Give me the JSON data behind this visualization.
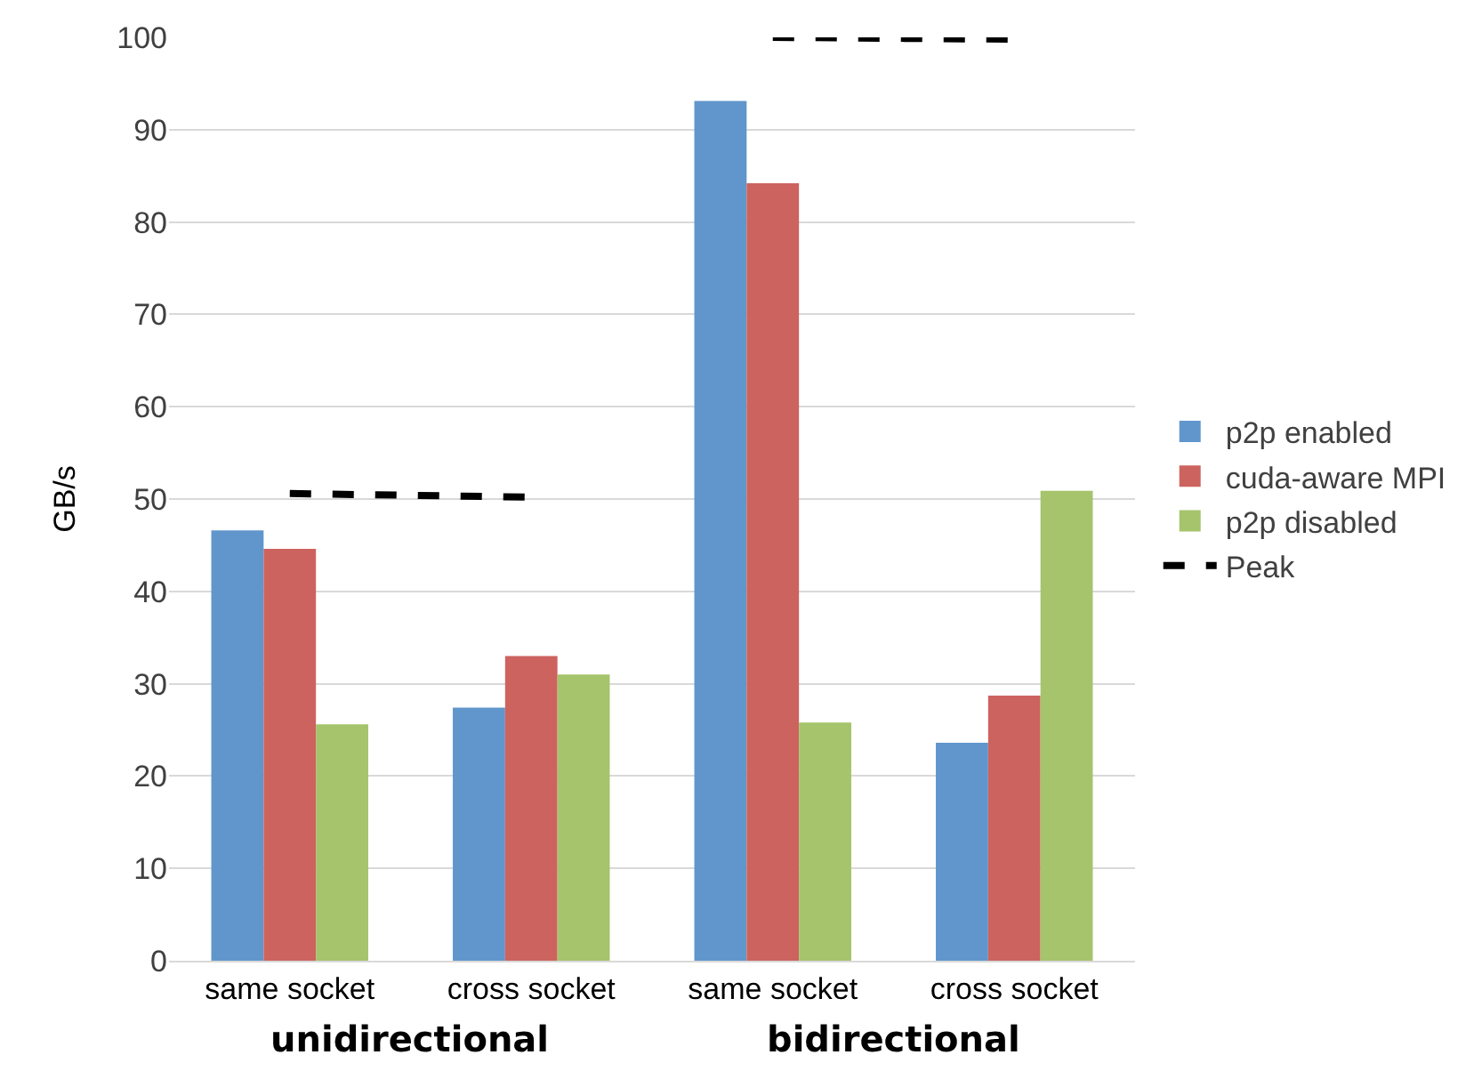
{
  "chart_data": {
    "type": "bar",
    "ylabel": "GB/s",
    "categories": [
      "same socket",
      "cross socket",
      "same socket",
      "cross socket"
    ],
    "series": [
      {
        "name": "p2p enabled",
        "color": "#6096cc",
        "values": [
          46.6,
          27.4,
          93.1,
          23.6
        ]
      },
      {
        "name": "cuda-aware MPI",
        "color": "#cd635e",
        "values": [
          44.6,
          33,
          84.2,
          28.7
        ]
      },
      {
        "name": "p2p disabled",
        "color": "#a6c46c",
        "values": [
          25.6,
          31,
          25.8,
          50.9
        ]
      },
      {
        "name": "Peak",
        "type": "line",
        "color": "#000000",
        "line_style": "dashed",
        "values": [
          50.6,
          50.2,
          100,
          99.8
        ]
      }
    ],
    "annotations": [
      "unidirectional",
      "bidirectional"
    ],
    "ylim": [
      0,
      100
    ],
    "yticks": [
      0,
      10,
      20,
      30,
      40,
      50,
      60,
      70,
      80,
      90,
      100
    ],
    "grid": "y",
    "legend": "right",
    "marker": "none"
  }
}
